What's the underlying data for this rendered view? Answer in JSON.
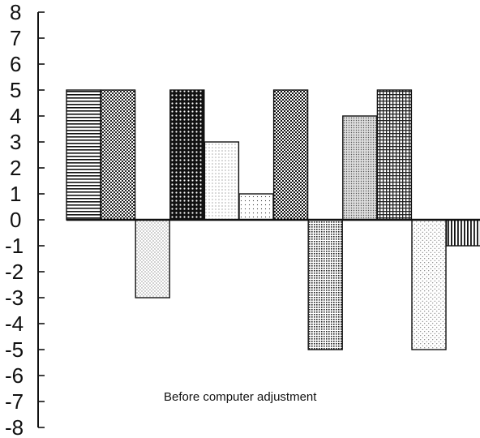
{
  "chart_data": {
    "type": "bar",
    "title": "",
    "xlabel": "",
    "ylabel": "",
    "ylim": [
      -8,
      8
    ],
    "yticks": [
      8,
      7,
      6,
      5,
      4,
      3,
      2,
      1,
      0,
      -1,
      -2,
      -3,
      -4,
      -5,
      -6,
      -7,
      -8
    ],
    "grid": false,
    "legend": "none",
    "annotation": "Before computer adjustment",
    "values": [
      5,
      5,
      -3,
      5,
      3,
      1,
      5,
      -5,
      4,
      5,
      -5,
      -1
    ]
  }
}
